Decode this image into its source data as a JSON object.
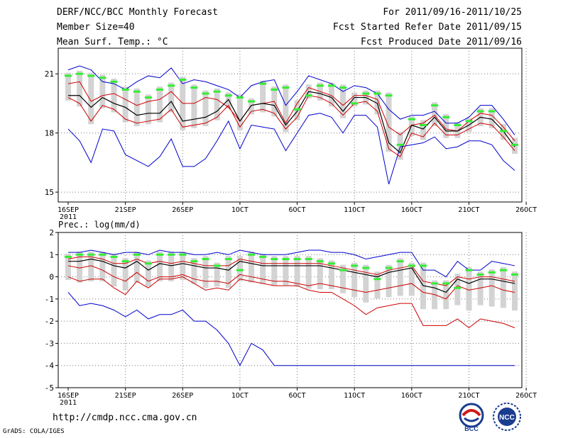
{
  "header": {
    "left": [
      "DERF/NCC/BCC Monthly Forecast",
      "Member Size=40",
      "Mean Surf. Temp.: °C"
    ],
    "right": [
      "For 2011/09/16-2011/10/25",
      "Fcst Started Refer Date 2011/09/15",
      "Fcst Produced Date 2011/09/16"
    ]
  },
  "footer": {
    "url": "http://cmdp.ncc.cma.gov.cn",
    "credit": "GrADS: COLA/IGES"
  },
  "logos": {
    "bcc": "BCC",
    "ncc": "NCC"
  },
  "colors": {
    "max_min": "#0000cc",
    "spread": "#cc0000",
    "mean": "#000000",
    "box": "#d3d3d3",
    "ensemble": "#33ee33"
  },
  "chart_data": [
    {
      "type": "line",
      "title": "Mean Surf. Temp.: °C",
      "x_ticks": [
        "16SEP",
        "21SEP",
        "26SEP",
        "1OCT",
        "6OCT",
        "11OCT",
        "16OCT",
        "21OCT",
        "26OCT"
      ],
      "x_year": "2011",
      "ylim": [
        14.5,
        22.3
      ],
      "y_ticks": [
        15,
        18,
        21
      ],
      "days": 40,
      "series": [
        {
          "name": "max",
          "values": [
            21.2,
            21.4,
            21.2,
            20.6,
            20.5,
            20.2,
            20.6,
            20.9,
            20.8,
            21.3,
            20.5,
            20.7,
            20.6,
            20.4,
            20.2,
            19.8,
            20.4,
            20.6,
            20.7,
            19.4,
            20.1,
            20.9,
            20.7,
            20.5,
            20.1,
            20.4,
            20.3,
            20.0,
            19.2,
            18.7,
            18.9,
            18.9,
            19.1,
            18.5,
            18.5,
            18.8,
            19.4,
            19.4,
            18.7,
            17.9
          ]
        },
        {
          "name": "upper",
          "values": [
            20.5,
            20.6,
            19.6,
            19.9,
            20.0,
            19.7,
            19.4,
            19.6,
            19.7,
            20.1,
            19.5,
            19.5,
            19.8,
            19.7,
            19.3,
            18.6,
            19.4,
            19.5,
            19.6,
            18.5,
            19.5,
            20.3,
            20.1,
            19.9,
            19.4,
            19.9,
            19.9,
            19.7,
            18.3,
            17.9,
            18.4,
            18.5,
            18.9,
            18.2,
            18.1,
            18.6,
            19.0,
            18.9,
            18.3,
            17.6
          ]
        },
        {
          "name": "mean",
          "values": [
            19.9,
            19.9,
            19.3,
            19.8,
            19.5,
            19.3,
            18.9,
            19.0,
            19.0,
            19.6,
            18.6,
            18.7,
            18.8,
            19.1,
            19.7,
            18.6,
            19.4,
            19.5,
            19.4,
            18.4,
            19.1,
            20.1,
            20.0,
            19.8,
            19.1,
            19.8,
            19.8,
            19.5,
            17.5,
            17.0,
            18.4,
            18.2,
            18.8,
            18.1,
            18.1,
            18.4,
            18.8,
            18.7,
            18.1,
            17.3
          ]
        },
        {
          "name": "lower",
          "values": [
            19.8,
            19.5,
            18.6,
            19.4,
            19.2,
            18.7,
            18.5,
            18.6,
            18.7,
            19.2,
            18.3,
            18.4,
            18.5,
            18.8,
            19.4,
            18.3,
            19.1,
            19.2,
            19.0,
            18.2,
            18.8,
            19.9,
            19.8,
            19.5,
            18.9,
            19.5,
            19.6,
            19.1,
            17.2,
            16.8,
            18.0,
            17.8,
            18.5,
            17.9,
            17.9,
            18.2,
            18.5,
            18.4,
            17.8,
            17.1
          ]
        },
        {
          "name": "min",
          "values": [
            18.2,
            17.6,
            16.5,
            18.2,
            18.1,
            16.9,
            16.6,
            16.3,
            16.8,
            17.7,
            16.3,
            16.3,
            16.7,
            17.6,
            18.6,
            17.2,
            18.4,
            18.3,
            18.2,
            17.1,
            18.0,
            18.9,
            19.0,
            18.8,
            18.0,
            18.9,
            18.9,
            18.3,
            15.4,
            17.3,
            17.4,
            17.5,
            17.8,
            17.2,
            17.3,
            17.6,
            17.6,
            17.4,
            16.6,
            16.1
          ]
        },
        {
          "name": "ensemble",
          "values": [
            20.9,
            21.0,
            20.9,
            20.8,
            20.6,
            20.2,
            20.1,
            19.8,
            20.2,
            20.4,
            20.7,
            20.3,
            20.0,
            20.1,
            19.9,
            19.8,
            19.6,
            20.5,
            20.2,
            20.3,
            19.2,
            19.9,
            20.4,
            20.4,
            20.3,
            19.5,
            20.0,
            20.0,
            19.9,
            17.4,
            18.7,
            18.4,
            19.4,
            18.8,
            18.4,
            18.6,
            19.1,
            19.1,
            18.1,
            17.4
          ]
        }
      ]
    },
    {
      "type": "line",
      "title": "Prec.: log(mm/d)",
      "x_ticks": [
        "16SEP",
        "21SEP",
        "26SEP",
        "1OCT",
        "6OCT",
        "11OCT",
        "16OCT",
        "21OCT",
        "26OCT"
      ],
      "x_year": "2011",
      "ylim": [
        -5,
        2
      ],
      "y_ticks": [
        -5,
        -4,
        -3,
        -2,
        -1,
        0,
        1,
        2
      ],
      "days": 40,
      "series": [
        {
          "name": "max",
          "values": [
            1.1,
            1.1,
            1.2,
            1.1,
            1.0,
            1.1,
            1.1,
            1.0,
            1.2,
            1.1,
            1.1,
            1.0,
            1.0,
            1.1,
            1.0,
            1.2,
            1.1,
            1.0,
            1.0,
            1.0,
            1.1,
            1.2,
            1.2,
            1.1,
            1.1,
            1.0,
            0.8,
            0.9,
            1.0,
            1.1,
            1.1,
            0.3,
            0.3,
            0.0,
            0.7,
            0.3,
            0.3,
            0.7,
            0.6,
            0.5
          ]
        },
        {
          "name": "upper",
          "values": [
            0.8,
            0.9,
            0.9,
            0.8,
            0.6,
            0.6,
            0.8,
            0.6,
            0.7,
            0.6,
            0.7,
            0.6,
            0.5,
            0.5,
            0.5,
            0.8,
            0.7,
            0.6,
            0.6,
            0.6,
            0.6,
            0.6,
            0.6,
            0.5,
            0.4,
            0.3,
            0.2,
            0.1,
            0.3,
            0.4,
            0.5,
            -0.2,
            -0.3,
            -0.4,
            0.0,
            -0.1,
            0.0,
            0.0,
            -0.1,
            -0.2
          ]
        },
        {
          "name": "mean",
          "values": [
            0.7,
            0.7,
            0.8,
            0.7,
            0.5,
            0.4,
            0.7,
            0.3,
            0.6,
            0.5,
            0.6,
            0.5,
            0.4,
            0.4,
            0.3,
            0.7,
            0.6,
            0.5,
            0.5,
            0.5,
            0.5,
            0.5,
            0.5,
            0.4,
            0.3,
            0.2,
            0.1,
            0.0,
            0.2,
            0.3,
            0.4,
            -0.4,
            -0.5,
            -0.7,
            -0.1,
            -0.3,
            -0.1,
            -0.1,
            -0.2,
            -0.3
          ]
        },
        {
          "name": "lower",
          "values": [
            0.5,
            0.4,
            0.5,
            0.3,
            0.0,
            -0.2,
            0.2,
            -0.2,
            0.0,
            0.0,
            0.1,
            -0.1,
            -0.2,
            -0.2,
            -0.3,
            0.1,
            0.0,
            -0.1,
            -0.2,
            -0.2,
            -0.3,
            -0.4,
            -0.3,
            -0.4,
            -0.5,
            -0.6,
            -0.7,
            -0.6,
            -0.5,
            -0.4,
            -0.3,
            -0.7,
            -0.8,
            -1.0,
            -0.4,
            -0.6,
            -0.5,
            -0.4,
            -0.6,
            -0.7
          ]
        },
        {
          "name": "min",
          "values": [
            -0.7,
            -1.3,
            -1.2,
            -1.3,
            -1.5,
            -1.8,
            -1.5,
            -1.9,
            -1.7,
            -1.7,
            -1.5,
            -2.0,
            -2.0,
            -2.4,
            -3.0,
            -4.0,
            -3.0,
            -3.3,
            -4.0,
            -4.0,
            -4.0,
            -4.0,
            -4.0,
            -4.0,
            -4.0,
            -4.0,
            -4.0,
            -4.0,
            -4.0,
            -4.0,
            -4.0,
            -4.0,
            -4.0,
            -4.0,
            -4.0,
            -4.0,
            -4.0,
            -4.0,
            -4.0,
            -4.0
          ]
        },
        {
          "name": "low_spread",
          "values": [
            0.0,
            -0.2,
            -0.1,
            -0.1,
            -0.5,
            -0.8,
            -0.2,
            -0.5,
            -0.1,
            -0.1,
            0.0,
            -0.3,
            -0.6,
            -0.5,
            -0.6,
            -0.1,
            -0.2,
            -0.3,
            -0.4,
            -0.4,
            -0.4,
            -0.6,
            -0.7,
            -0.7,
            -1.0,
            -1.3,
            -1.7,
            -1.4,
            -1.3,
            -1.2,
            -1.2,
            -2.2,
            -2.2,
            -2.2,
            -1.9,
            -2.3,
            -1.9,
            -2.0,
            -2.1,
            -2.3
          ]
        },
        {
          "name": "ensemble",
          "values": [
            0.9,
            1.0,
            1.0,
            1.0,
            0.9,
            0.7,
            1.0,
            0.6,
            1.0,
            1.0,
            1.0,
            0.7,
            0.8,
            0.5,
            0.8,
            0.3,
            1.0,
            0.9,
            0.8,
            0.8,
            0.8,
            0.8,
            0.7,
            0.6,
            0.3,
            0.5,
            0.4,
            -0.1,
            0.4,
            0.7,
            0.5,
            0.5,
            -0.3,
            -0.3,
            -0.5,
            0.3,
            0.1,
            0.2,
            0.3,
            0.1
          ]
        }
      ]
    }
  ]
}
